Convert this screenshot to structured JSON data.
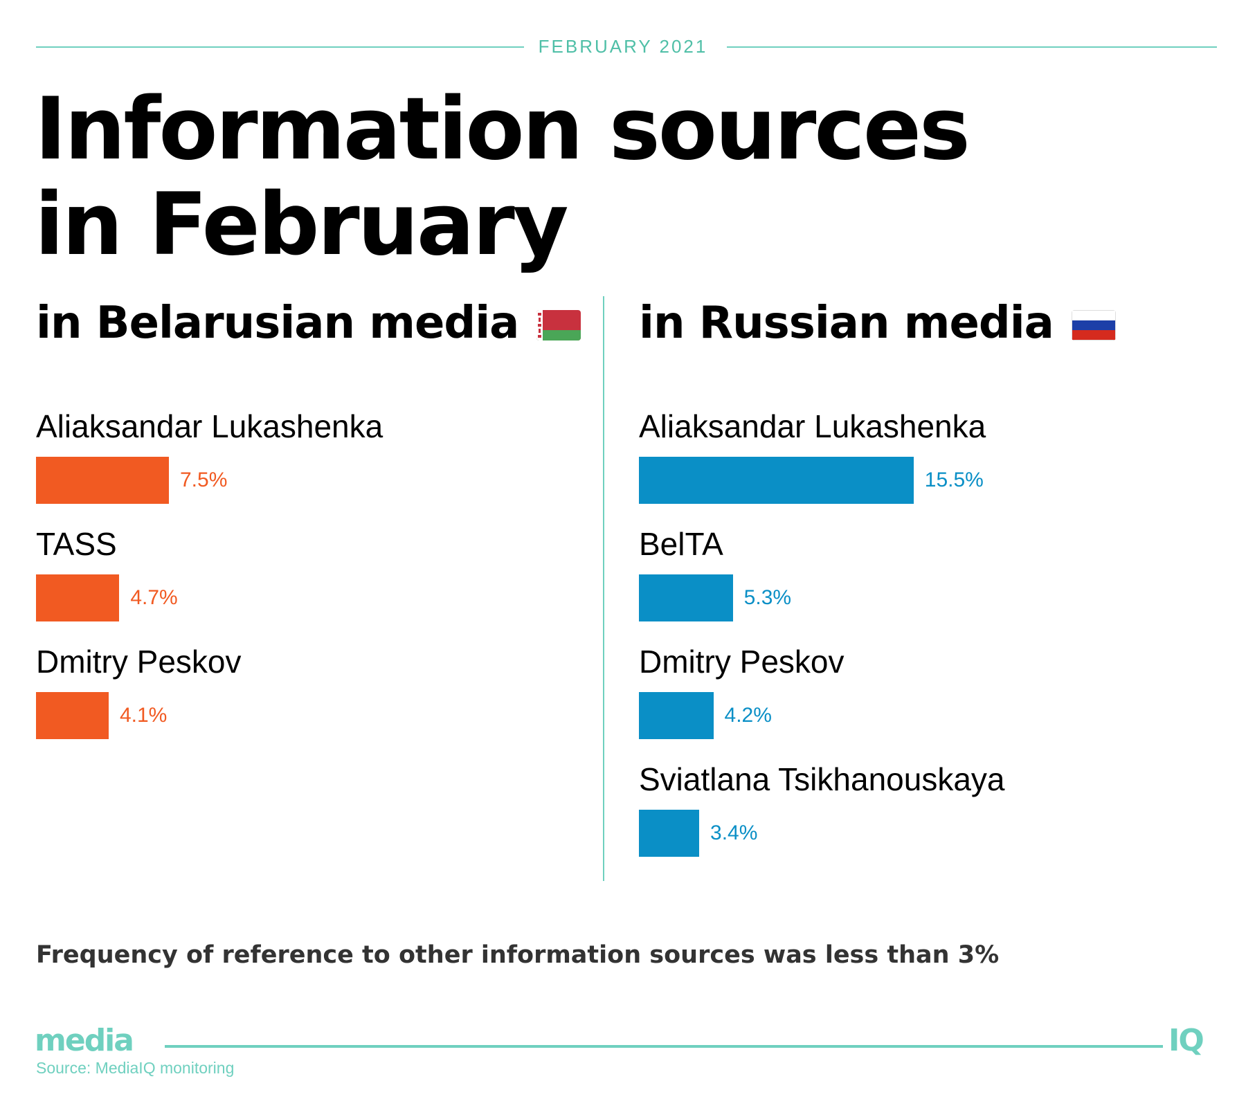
{
  "header": {
    "date": "FEBRUARY 2021"
  },
  "title": {
    "line1": "Information sources",
    "line2": "in February"
  },
  "colors": {
    "accent": "#6fd0bf",
    "belarus_bar": "#f15a22",
    "russia_bar": "#0a8fc6"
  },
  "chart_data": [
    {
      "type": "bar",
      "orientation": "horizontal",
      "title": "in Belarusian media",
      "flag": "belarus-flag",
      "categories": [
        "Aliaksandar Lukashenka",
        "TASS",
        "Dmitry Peskov"
      ],
      "values": [
        7.5,
        4.7,
        4.1
      ],
      "value_labels": [
        "7.5%",
        "4.7%",
        "4.1%"
      ],
      "unit": "%",
      "color": "#f15a22",
      "grid": false
    },
    {
      "type": "bar",
      "orientation": "horizontal",
      "title": "in Russian media",
      "flag": "russia-flag",
      "categories": [
        "Aliaksandar Lukashenka",
        "BelTA",
        "Dmitry Peskov",
        "Sviatlana Tsikhanouskaya"
      ],
      "values": [
        15.5,
        5.3,
        4.2,
        3.4
      ],
      "value_labels": [
        "15.5%",
        "5.3%",
        "4.2%",
        "3.4%"
      ],
      "unit": "%",
      "color": "#0a8fc6",
      "grid": false
    }
  ],
  "footnote": "Frequency of reference to other information sources was less than 3%",
  "footer": {
    "logo_left": "media",
    "logo_right": "IQ",
    "source": "Source: MediaIQ monitoring"
  }
}
